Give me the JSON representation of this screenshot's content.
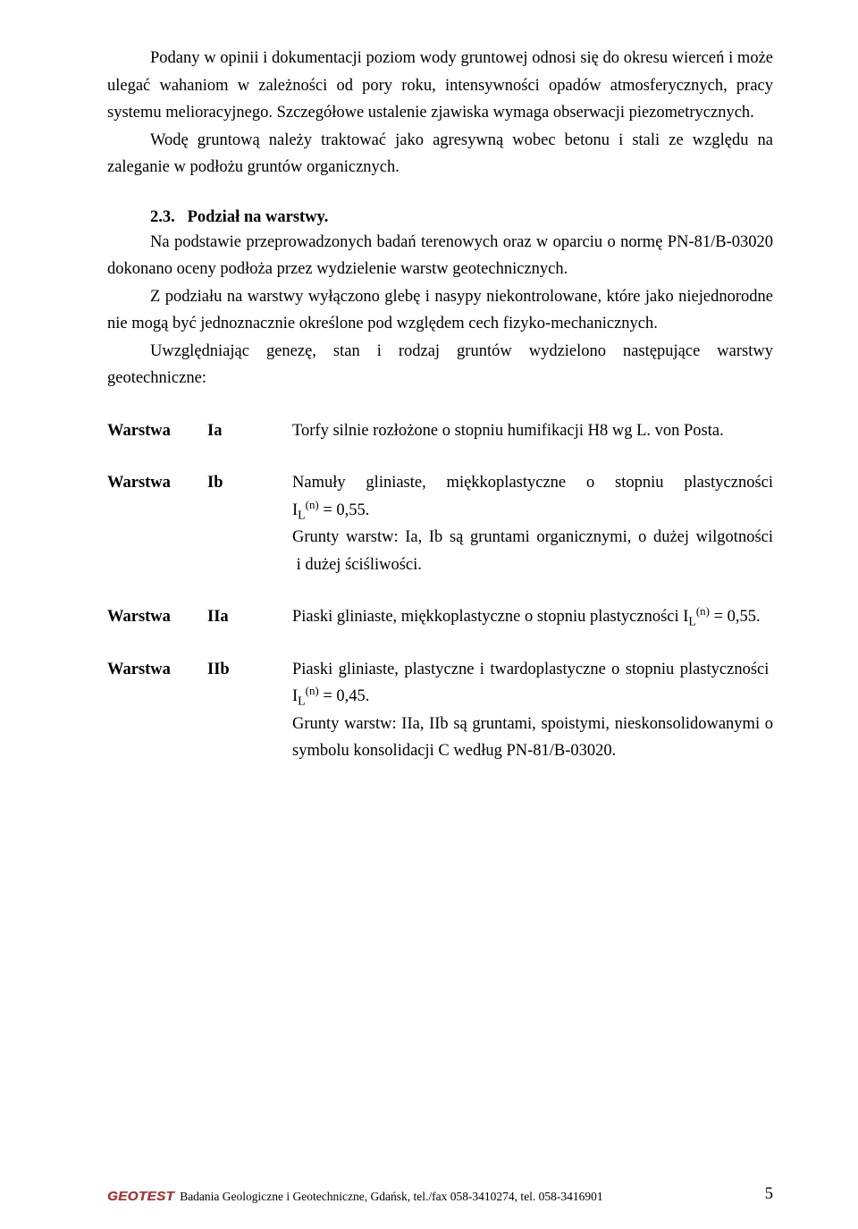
{
  "intro": {
    "p1": "Podany w opinii i dokumentacji poziom wody gruntowej odnosi się do okresu wierceń i może ulegać wahaniom w zależności od pory roku, intensywności opadów atmosferycznych, pracy systemu melioracyjnego. Szczegółowe ustalenie zjawiska wymaga obserwacji piezometrycznych.",
    "p2": "Wodę gruntową należy traktować jako agresywną wobec betonu i stali ze względu na zaleganie w podłożu gruntów organicznych."
  },
  "section": {
    "num": "2.3.",
    "title": "Podział na warstwy.",
    "p1": "Na podstawie przeprowadzonych badań terenowych oraz w oparciu o normę PN-81/B-03020 dokonano oceny podłoża przez wydzielenie warstw geotechnicznych.",
    "p2": "Z podziału na warstwy wyłączono glebę i nasypy niekontrolowane, które jako niejednorodne nie mogą być jednoznacznie określone pod względem cech fizyko-mechanicznych.",
    "p3": "Uwzględniając genezę, stan i rodzaj gruntów wydzielono następujące warstwy geotechniczne:"
  },
  "layers": {
    "word": "Warstwa",
    "Ia": {
      "id": "Ia",
      "desc_pre": "Torfy silnie rozłożone o stopniu humifikacji H8 wg L. von Posta."
    },
    "Ib": {
      "id": "Ib",
      "l1_a": "Namuły gliniaste, miękkoplastyczne o stopniu plastyczności I",
      "l1_b": " = 0,55.",
      "l2": "Grunty warstw: Ia, Ib są gruntami organicznymi, o dużej wilgotności  i dużej ściśliwości."
    },
    "IIa": {
      "id": "IIa",
      "l1_a": "Piaski gliniaste, miękkoplastyczne o stopniu plastyczności I",
      "l1_b": " = 0,55."
    },
    "IIb": {
      "id": "IIb",
      "l1_a": "Piaski gliniaste, plastyczne i twardoplastyczne o stopniu plastyczności  I",
      "l1_b": " = 0,45.",
      "l2": "Grunty warstw: IIa, IIb są gruntami, spoistymi, nieskonsolidowanymi o symbolu konsolidacji C według PN-81/B-03020."
    },
    "sub": "L",
    "sup": "(n)"
  },
  "footer": {
    "logo": "GEOTEST",
    "text": "Badania Geologiczne i Geotechniczne, Gdańsk, tel./fax 058-3410274, tel. 058-3416901",
    "page": "5"
  }
}
